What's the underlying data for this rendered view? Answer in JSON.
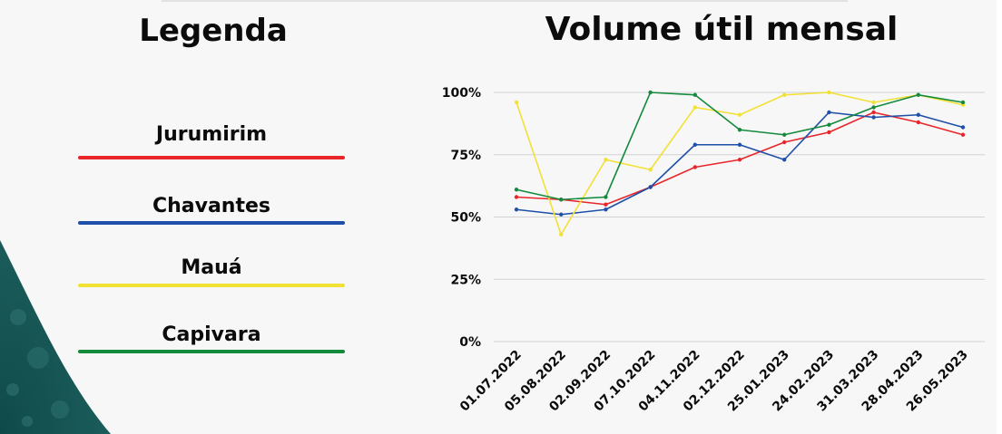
{
  "legend": {
    "title": "Legenda",
    "items": [
      {
        "label": "Jurumirim",
        "color": "#e8262a"
      },
      {
        "label": "Chavantes",
        "color": "#1f4fa8"
      },
      {
        "label": "Mauá",
        "color": "#f2e135"
      },
      {
        "label": "Capivara",
        "color": "#138a3c"
      }
    ]
  },
  "chart_data": {
    "type": "line",
    "title": "Volume útil mensal",
    "xlabel": "",
    "ylabel": "",
    "categories": [
      "01.07.2022",
      "05.08.2022",
      "02.09.2022",
      "07.10.2022",
      "04.11.2022",
      "02.12.2022",
      "25.01.2023",
      "24.02.2023",
      "31.03.2023",
      "28.04.2023",
      "26.05.2023"
    ],
    "ylim": [
      0,
      100
    ],
    "yticks": [
      0,
      25,
      50,
      75,
      100
    ],
    "ytick_labels": [
      "0%",
      "25%",
      "50%",
      "75%",
      "100%"
    ],
    "grid": "horizontal",
    "series": [
      {
        "name": "Jurumirim",
        "color": "#e8262a",
        "values": [
          58,
          57,
          55,
          62,
          70,
          73,
          80,
          84,
          92,
          88,
          83
        ]
      },
      {
        "name": "Chavantes",
        "color": "#1f4fa8",
        "values": [
          53,
          51,
          53,
          62,
          79,
          79,
          73,
          92,
          90,
          91,
          86
        ]
      },
      {
        "name": "Mauá",
        "color": "#f2e135",
        "values": [
          96,
          43,
          73,
          69,
          94,
          91,
          99,
          100,
          96,
          99,
          95
        ]
      },
      {
        "name": "Capivara",
        "color": "#138a3c",
        "values": [
          61,
          57,
          58,
          100,
          99,
          85,
          83,
          87,
          94,
          99,
          96
        ]
      }
    ]
  }
}
